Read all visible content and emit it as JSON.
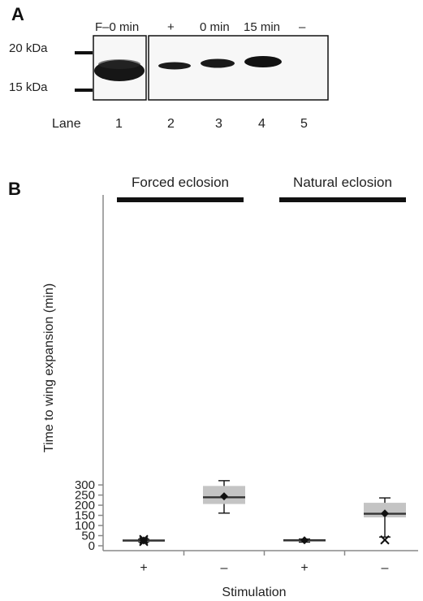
{
  "panel_a": {
    "label": "A",
    "markers": [
      "20 kDa",
      "15 kDa"
    ],
    "lane_headers": [
      "F–0 min",
      "+",
      "0 min",
      "15 min",
      "–"
    ],
    "lane_word": "Lane",
    "lane_numbers": [
      "1",
      "2",
      "3",
      "4",
      "5"
    ]
  },
  "panel_b": {
    "label": "B",
    "groups": [
      "Forced eclosion",
      "Natural eclosion"
    ]
  },
  "chart_data": {
    "type": "box",
    "title": "",
    "xlabel": "Stimulation",
    "ylabel": "Time to wing expansion (min)",
    "ylim": [
      0,
      350
    ],
    "yticks": [
      0,
      50,
      100,
      150,
      200,
      250,
      300
    ],
    "categories": [
      "+",
      "–",
      "+",
      "–"
    ],
    "grid": false,
    "boxes": [
      {
        "group": "Forced eclosion",
        "stimulation": "+",
        "whisker_low": 20,
        "q1": 24,
        "median": 26,
        "q3": 28,
        "whisker_high": 32,
        "mean": 26,
        "outliers": [
          21,
          31
        ]
      },
      {
        "group": "Forced eclosion",
        "stimulation": "–",
        "whisker_low": 161,
        "q1": 206,
        "median": 239,
        "q3": 295,
        "whisker_high": 321,
        "mean": 244,
        "outliers": []
      },
      {
        "group": "Natural eclosion",
        "stimulation": "+",
        "whisker_low": 18,
        "q1": 25,
        "median": 27,
        "q3": 29,
        "whisker_high": 33,
        "mean": 27,
        "outliers": []
      },
      {
        "group": "Natural eclosion",
        "stimulation": "–",
        "whisker_low": 43,
        "q1": 140,
        "median": 158,
        "q3": 212,
        "whisker_high": 236,
        "mean": 159,
        "outliers": [
          29
        ]
      }
    ]
  }
}
